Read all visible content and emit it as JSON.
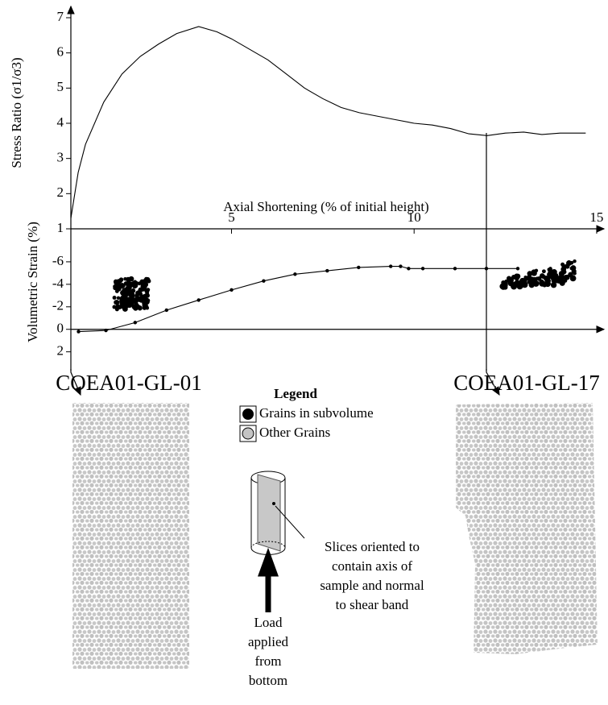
{
  "chart_data": [
    {
      "type": "line",
      "y_label": "Stress Ratio (σ1/σ3)",
      "x_label": "Axial Shortening (% of initial height)",
      "x": [
        0.6,
        0.8,
        1.0,
        1.5,
        2.0,
        2.5,
        3.0,
        3.5,
        4.1,
        4.6,
        5.0,
        5.5,
        6.0,
        6.5,
        7.0,
        7.5,
        8.0,
        8.5,
        9.0,
        9.5,
        10.0,
        10.5,
        11.0,
        11.5,
        12.0,
        12.5,
        13.0,
        13.5,
        14.0,
        14.7
      ],
      "values": [
        1.3,
        2.6,
        3.4,
        4.6,
        5.4,
        5.9,
        6.25,
        6.55,
        6.75,
        6.6,
        6.4,
        6.1,
        5.8,
        5.4,
        5.0,
        4.7,
        4.45,
        4.3,
        4.2,
        4.1,
        4.0,
        3.95,
        3.85,
        3.7,
        3.65,
        3.72,
        3.75,
        3.68,
        3.72,
        3.72
      ],
      "color": "#000000",
      "xlim": [
        0.6,
        15.2
      ],
      "xticks": [
        5,
        10,
        15
      ],
      "ylim": [
        1,
        7
      ],
      "yticks": [
        1,
        2,
        3,
        4,
        5,
        6,
        7
      ]
    },
    {
      "type": "line",
      "y_label": "Volumetric Strain (%)",
      "x": [
        0.81,
        1.56,
        2.36,
        3.22,
        4.1,
        5.0,
        5.88,
        6.74,
        7.62,
        8.48,
        9.36,
        9.63,
        9.85,
        10.24,
        11.12,
        11.98,
        12.84
      ],
      "values": [
        0.2,
        0.1,
        -0.6,
        -1.7,
        -2.6,
        -3.5,
        -4.3,
        -4.9,
        -5.2,
        -5.5,
        -5.6,
        -5.6,
        -5.4,
        -5.4,
        -5.4,
        -5.4,
        -5.4
      ],
      "color": "#000000",
      "markers": true,
      "xlim": [
        0.6,
        15.2
      ],
      "ylim": [
        3.6,
        -8
      ],
      "yticks": [
        2,
        0,
        -2,
        -4,
        -6
      ]
    }
  ],
  "figure": {
    "panels": [
      "COEA01-GL-01",
      "COEA01-GL-17"
    ],
    "legend": {
      "title": "Legend",
      "items": [
        "Grains in subvolume",
        "Other Grains"
      ]
    },
    "note": [
      "Slices oriented to",
      "contain axis of",
      "sample and normal",
      "to shear band"
    ],
    "load": [
      "Load",
      "applied",
      "from",
      "bottom"
    ]
  }
}
